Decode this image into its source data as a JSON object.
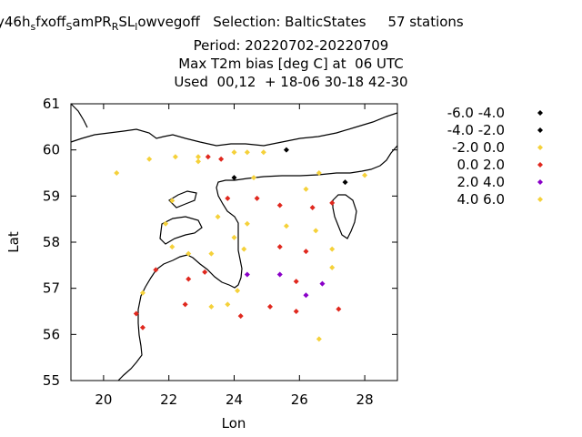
{
  "header": {
    "line1": "y46h",
    "line1_sub1": "s",
    "line1_mid1": "fxoff",
    "line1_sub2": "S",
    "line1_mid2": "amPR",
    "line1_sub3": "R",
    "line1_mid3": "SL",
    "line1_sub4": "l",
    "line1_mid4": "owvegoff   Selection: BalticStates     57 stations",
    "line2": "Period: 20220702-20220709",
    "line3": "Max T2m bias [deg C] at  06 UTC",
    "line4": "Used  00,12  + 18-06 30-18 42-30"
  },
  "chart_data": {
    "type": "scatter",
    "xlabel": "Lon",
    "ylabel": "Lat",
    "xlim": [
      19,
      29
    ],
    "ylim": [
      55,
      61
    ],
    "xticks": [
      "20",
      "22",
      "24",
      "26",
      "28"
    ],
    "yticks": [
      "55",
      "56",
      "57",
      "58",
      "59",
      "60",
      "61"
    ],
    "legend_position": "right",
    "series": [
      {
        "name": "-6.0 -4.0",
        "color": "#000000",
        "points": []
      },
      {
        "name": "-4.0 -2.0",
        "color": "#000000",
        "points": [
          [
            24.0,
            59.4
          ],
          [
            25.6,
            60.0
          ],
          [
            27.4,
            59.3
          ]
        ]
      },
      {
        "name": "-2.0 0.0",
        "color": "#f5d13a",
        "points": [
          [
            20.4,
            59.5
          ],
          [
            21.4,
            59.8
          ],
          [
            22.2,
            59.85
          ],
          [
            22.9,
            59.75
          ],
          [
            22.9,
            59.85
          ],
          [
            24.0,
            59.95
          ],
          [
            24.4,
            59.95
          ],
          [
            24.9,
            59.95
          ],
          [
            24.6,
            59.4
          ],
          [
            26.6,
            59.5
          ],
          [
            28.0,
            59.45
          ],
          [
            26.2,
            59.15
          ],
          [
            22.1,
            58.9
          ],
          [
            21.9,
            58.4
          ],
          [
            23.5,
            58.55
          ],
          [
            24.4,
            58.4
          ],
          [
            25.6,
            58.35
          ],
          [
            26.5,
            58.25
          ],
          [
            24.0,
            58.1
          ],
          [
            22.1,
            57.9
          ],
          [
            24.3,
            57.85
          ],
          [
            27.0,
            57.85
          ],
          [
            22.6,
            57.75
          ],
          [
            23.3,
            57.75
          ],
          [
            27.0,
            57.45
          ],
          [
            24.1,
            56.95
          ],
          [
            21.2,
            56.9
          ],
          [
            23.8,
            56.65
          ],
          [
            23.3,
            56.6
          ],
          [
            26.6,
            55.9
          ]
        ]
      },
      {
        "name": "0.0 2.0",
        "color": "#e0281e",
        "points": [
          [
            23.2,
            59.85
          ],
          [
            23.6,
            59.8
          ],
          [
            23.8,
            58.95
          ],
          [
            24.7,
            58.95
          ],
          [
            25.4,
            58.8
          ],
          [
            26.4,
            58.75
          ],
          [
            27.0,
            58.85
          ],
          [
            25.4,
            57.9
          ],
          [
            26.2,
            57.8
          ],
          [
            21.6,
            57.4
          ],
          [
            23.1,
            57.35
          ],
          [
            22.6,
            57.2
          ],
          [
            25.9,
            57.15
          ],
          [
            22.5,
            56.65
          ],
          [
            25.1,
            56.6
          ],
          [
            25.9,
            56.5
          ],
          [
            21.0,
            56.45
          ],
          [
            24.2,
            56.4
          ],
          [
            27.2,
            56.55
          ],
          [
            21.2,
            56.15
          ]
        ]
      },
      {
        "name": "2.0 4.0",
        "color": "#8a00c8",
        "points": [
          [
            24.4,
            57.3
          ],
          [
            25.4,
            57.3
          ],
          [
            26.2,
            56.85
          ],
          [
            26.7,
            57.1
          ]
        ]
      },
      {
        "name": "4.0 6.0",
        "color": "#f5d13a",
        "points": []
      }
    ]
  }
}
